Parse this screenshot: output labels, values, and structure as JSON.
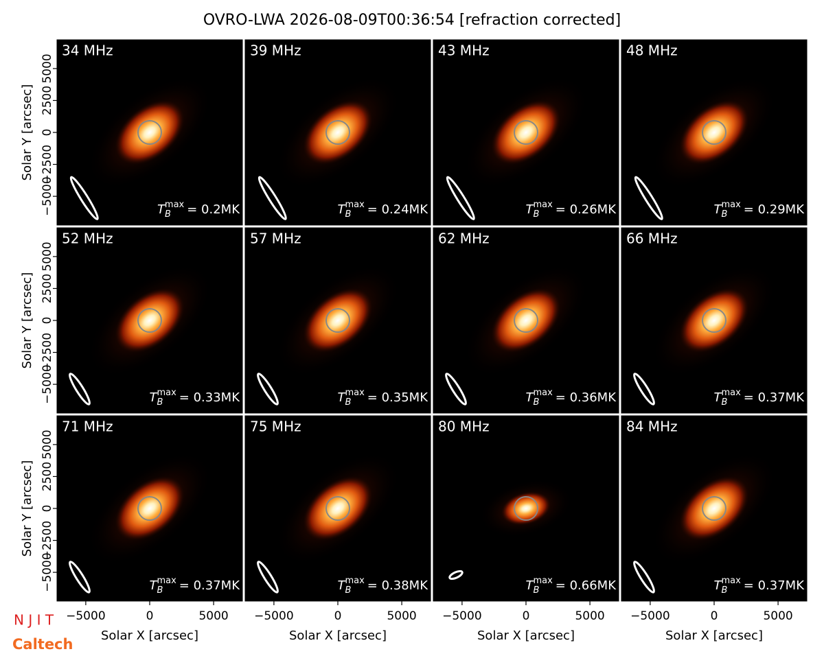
{
  "chart_data": {
    "type": "image-grid",
    "title": "OVRO-LWA 2026-08-09T00:36:54 [refraction corrected]",
    "xlabel": "Solar X [arcsec]",
    "ylabel": "Solar Y [arcsec]",
    "xlim": [
      -7250,
      7250
    ],
    "ylim": [
      -7250,
      7250
    ],
    "xticks": [
      {
        "value": -5000,
        "label": "−5000"
      },
      0,
      5000
    ],
    "yticks": [
      {
        "value": -5000,
        "label": "−5000"
      },
      {
        "value": -2500,
        "label": "−2500"
      },
      0,
      2500,
      5000
    ],
    "columns": 4,
    "tb_symbol": "T",
    "tb_sub": "B",
    "tb_sup": "max",
    "panels": [
      {
        "label": "34 MHz",
        "tb_text": "= 0.2MK"
      },
      {
        "label": "39 MHz",
        "tb_text": "= 0.24MK"
      },
      {
        "label": "43 MHz",
        "tb_text": "= 0.26MK"
      },
      {
        "label": "48 MHz",
        "tb_text": "= 0.29MK"
      },
      {
        "label": "52 MHz",
        "tb_text": "= 0.33MK"
      },
      {
        "label": "57 MHz",
        "tb_text": "= 0.35MK"
      },
      {
        "label": "62 MHz",
        "tb_text": "= 0.36MK"
      },
      {
        "label": "66 MHz",
        "tb_text": "= 0.37MK"
      },
      {
        "label": "71 MHz",
        "tb_text": "= 0.37MK"
      },
      {
        "label": "75 MHz",
        "tb_text": "= 0.38MK"
      },
      {
        "label": "80 MHz",
        "tb_text": "= 0.66MK"
      },
      {
        "label": "84 MHz",
        "tb_text": "= 0.37MK"
      }
    ],
    "logos": [
      "N J I T",
      "Caltech"
    ]
  }
}
